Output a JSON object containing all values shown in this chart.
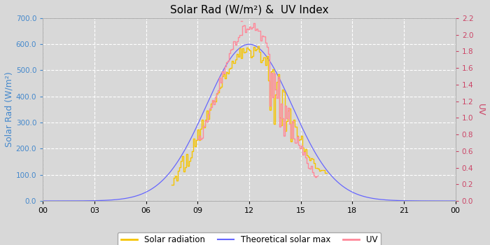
{
  "title": "Solar Rad (W/m²) &  UV Index",
  "ylabel_left": "Solar Rad (W/m²)",
  "ylabel_right": "UV",
  "x_tick_labels": [
    "00",
    "03",
    "06",
    "09",
    "12",
    "15",
    "18",
    "21",
    "00"
  ],
  "x_tick_positions": [
    0,
    3,
    6,
    9,
    12,
    15,
    18,
    21,
    24
  ],
  "ylim_left": [
    0,
    700
  ],
  "ylim_right": [
    0,
    2.2
  ],
  "yticks_left": [
    0,
    100,
    200,
    300,
    400,
    500,
    600,
    700
  ],
  "ytick_labels_left": [
    "0.0",
    "100.0",
    "200.0",
    "300.0",
    "400.0",
    "500.0",
    "600.0",
    "700.0"
  ],
  "yticks_right": [
    0.0,
    0.2,
    0.4,
    0.6,
    0.8,
    1.0,
    1.2,
    1.4,
    1.6,
    1.8,
    2.0,
    2.2
  ],
  "bg_color": "#d8d8d8",
  "plot_bg_color": "#d8d8d8",
  "grid_color": "#ffffff",
  "solar_color": "#f5c400",
  "theoretical_color": "#6666ff",
  "uv_color": "#ff8899",
  "legend_entries": [
    "Solar radiation",
    "Theoretical solar max",
    "UV"
  ],
  "peak_hour": 12.0,
  "solar_max": 580,
  "theoretical_max": 600,
  "uv_max_scaled": 2.1,
  "sigma_theory": 2.5,
  "sigma_solar": 2.3,
  "sigma_uv": 2.0,
  "solar_start": 7.5,
  "solar_end": 16.5,
  "uv_start": 9.0,
  "uv_end": 16.0
}
